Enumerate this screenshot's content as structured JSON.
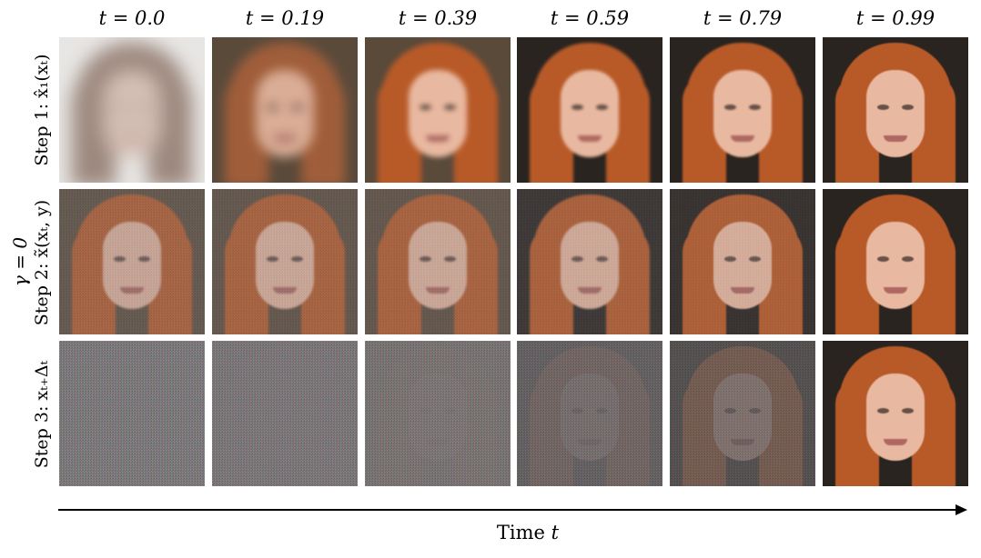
{
  "columns": [
    "t = 0.0",
    "t = 0.19",
    "t = 0.39",
    "t = 0.59",
    "t = 0.79",
    "t = 0.99"
  ],
  "rows": [
    {
      "label": "Step 1: x̂₁(xₜ)"
    },
    {
      "label": "Step 2: x̃(xₜ, y)"
    },
    {
      "label": "Step 3: xₜ₊Δₜ"
    }
  ],
  "gamma_label": "γ = 0",
  "axis": {
    "label_prefix": "Time ",
    "label_var": "t"
  }
}
